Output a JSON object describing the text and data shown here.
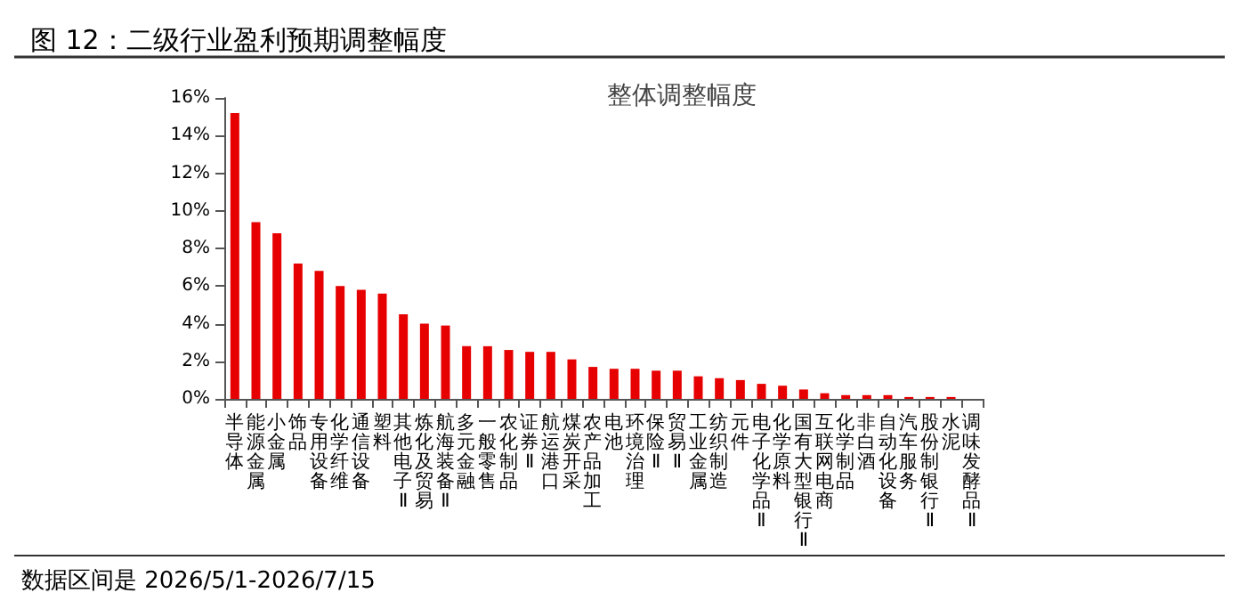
{
  "chart_data": {
    "type": "bar",
    "title": "整体调整幅度",
    "subtitle": "图 12：二级行业盈利预期调整幅度",
    "annotations": [
      "数据区间是 2026/5/1-2026/7/15"
    ],
    "categories": [
      "半导体",
      "能源金属",
      "小金属",
      "饰品",
      "专用设备",
      "化学纤维",
      "通信设备",
      "塑料",
      "其他电子Ⅱ",
      "炼化及贸易",
      "航海装备Ⅱ",
      "多元金融",
      "一般零售",
      "农化制品",
      "证券Ⅱ",
      "航运港口",
      "煤炭开采",
      "农产品加工",
      "电池",
      "环境治理",
      "保险Ⅱ",
      "贸易Ⅱ",
      "工业金属",
      "纺织制造",
      "元件",
      "电子化学品Ⅱ",
      "化学原料",
      "国有大型银行Ⅱ",
      "互联网电商",
      "化学制品",
      "非白酒",
      "自动化设备",
      "汽车服务",
      "股份制银行Ⅱ",
      "水泥",
      "调味发酵品Ⅱ"
    ],
    "values": [
      15.2,
      9.4,
      8.8,
      7.2,
      6.8,
      6.0,
      5.8,
      5.6,
      4.5,
      4.0,
      3.9,
      2.8,
      2.8,
      2.6,
      2.5,
      2.5,
      2.1,
      1.7,
      1.6,
      1.6,
      1.5,
      1.5,
      1.2,
      1.1,
      1.0,
      0.8,
      0.7,
      0.5,
      0.3,
      0.2,
      0.2,
      0.2,
      0.1,
      0.1,
      0.1,
      0
    ],
    "color": "#e60000",
    "ylim": [
      0,
      16
    ],
    "yticks": [
      {
        "value": 0,
        "label": "0%"
      },
      {
        "value": 2,
        "label": "2%"
      },
      {
        "value": 4,
        "label": "4%"
      },
      {
        "value": 6,
        "label": "6%"
      },
      {
        "value": 8,
        "label": "8%"
      },
      {
        "value": 10,
        "label": "10%"
      },
      {
        "value": 12,
        "label": "12%"
      },
      {
        "value": 14,
        "label": "14%"
      },
      {
        "value": 16,
        "label": "16%"
      }
    ],
    "grid": false
  }
}
